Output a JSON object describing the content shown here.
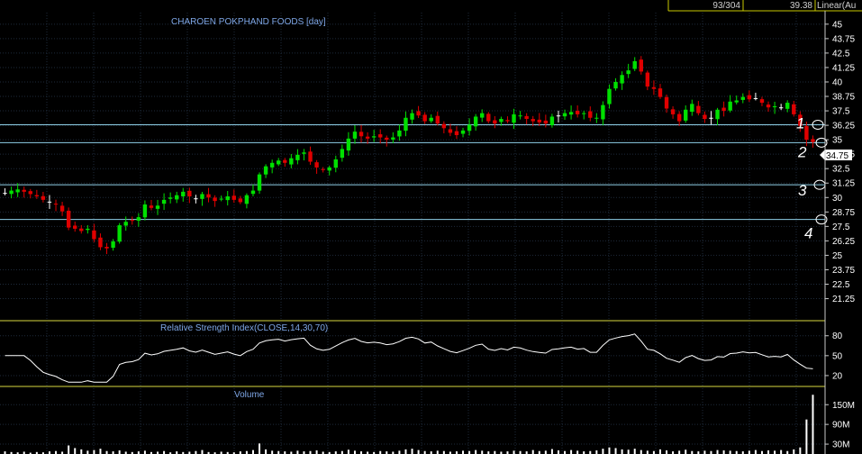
{
  "top_bar": {
    "bar_count": "93/304",
    "last_value": "39.38",
    "scale_mode": "Linear(Au"
  },
  "chart_data": [
    {
      "type": "candlestick",
      "title": "CHAROEN POKPHAND FOODS [day]",
      "ylim": [
        19.5,
        46
      ],
      "yticks": [
        "45",
        "43.75",
        "42.5",
        "41.25",
        "40",
        "38.75",
        "37.5",
        "36.25",
        "35",
        "33.75",
        "32.5",
        "31.25",
        "30",
        "28.75",
        "27.5",
        "26.25",
        "25",
        "23.75",
        "22.5",
        "21.25"
      ],
      "current_price_label": "34.75",
      "up_color": "#00e000",
      "down_color": "#e00000",
      "flat_color": "#ffffff",
      "grid": true,
      "close": [
        30.4,
        30.6,
        30.7,
        30.5,
        30.3,
        30.1,
        29.8,
        29.6,
        29.4,
        28.8,
        27.4,
        27.3,
        27.1,
        27.3,
        26.4,
        25.7,
        25.6,
        26.2,
        27.6,
        27.9,
        28.0,
        28.3,
        29.4,
        29.1,
        29.3,
        29.8,
        30.0,
        30.2,
        30.5,
        30.1,
        29.9,
        30.3,
        30.0,
        29.7,
        29.9,
        30.1,
        29.8,
        29.6,
        30.2,
        30.6,
        32.0,
        32.7,
        33.0,
        33.2,
        33.0,
        33.4,
        33.7,
        33.9,
        33.1,
        32.6,
        32.4,
        32.6,
        33.3,
        34.2,
        35.1,
        35.7,
        35.3,
        35.1,
        35.3,
        35.2,
        35.0,
        35.2,
        35.8,
        36.9,
        37.3,
        37.1,
        36.6,
        36.9,
        36.4,
        36.0,
        35.6,
        35.4,
        35.8,
        36.3,
        37.0,
        37.3,
        36.6,
        36.4,
        36.8,
        36.6,
        37.2,
        37.1,
        36.8,
        36.6,
        36.5,
        36.4,
        37.0,
        37.1,
        37.3,
        37.4,
        37.2,
        37.3,
        36.9,
        36.9,
        38.0,
        39.4,
        40.0,
        40.6,
        41.0,
        41.8,
        40.9,
        39.6,
        39.4,
        38.7,
        37.7,
        37.2,
        36.6,
        37.6,
        38.1,
        37.3,
        36.8,
        36.9,
        37.6,
        37.5,
        38.3,
        38.4,
        38.7,
        38.5,
        38.6,
        38.2,
        37.8,
        37.9,
        37.8,
        38.2,
        37.2,
        36.2,
        35.0,
        34.8
      ],
      "rsi": {
        "title": "Relative Strength Index(CLOSE,14,30,70)",
        "ylim": [
          5,
          100
        ],
        "yticks": [
          "80",
          "50",
          "20"
        ],
        "bands": [
          30,
          70
        ],
        "line_color": "#ffffff"
      },
      "volume": {
        "title": "Volume",
        "ylim": [
          0,
          200
        ],
        "yticks": [
          "150M",
          "90M",
          "30M"
        ],
        "values_m": [
          8,
          6,
          5,
          7,
          4,
          6,
          5,
          8,
          9,
          7,
          26,
          18,
          14,
          10,
          12,
          16,
          9,
          8,
          11,
          7,
          6,
          8,
          10,
          6,
          7,
          9,
          5,
          8,
          6,
          7,
          9,
          12,
          6,
          5,
          7,
          6,
          5,
          8,
          9,
          12,
          32,
          14,
          10,
          9,
          8,
          7,
          10,
          8,
          9,
          11,
          7,
          6,
          8,
          9,
          13,
          10,
          8,
          7,
          6,
          9,
          8,
          7,
          10,
          14,
          16,
          12,
          9,
          8,
          10,
          9,
          7,
          8,
          10,
          9,
          12,
          10,
          8,
          9,
          7,
          8,
          10,
          9,
          8,
          12,
          9,
          10,
          15,
          11,
          9,
          12,
          10,
          8,
          9,
          11,
          16,
          20,
          18,
          14,
          13,
          16,
          12,
          10,
          9,
          14,
          11,
          8,
          10,
          13,
          9,
          8,
          10,
          9,
          12,
          11,
          10,
          9,
          8,
          10,
          12,
          9,
          11,
          10,
          12,
          9,
          14,
          20,
          105,
          180
        ]
      }
    }
  ],
  "annotations": {
    "support_lines": [
      36.3,
      34.75,
      31.1,
      28.1
    ],
    "handwritten_labels": [
      "1",
      "2",
      "3",
      "4"
    ]
  }
}
